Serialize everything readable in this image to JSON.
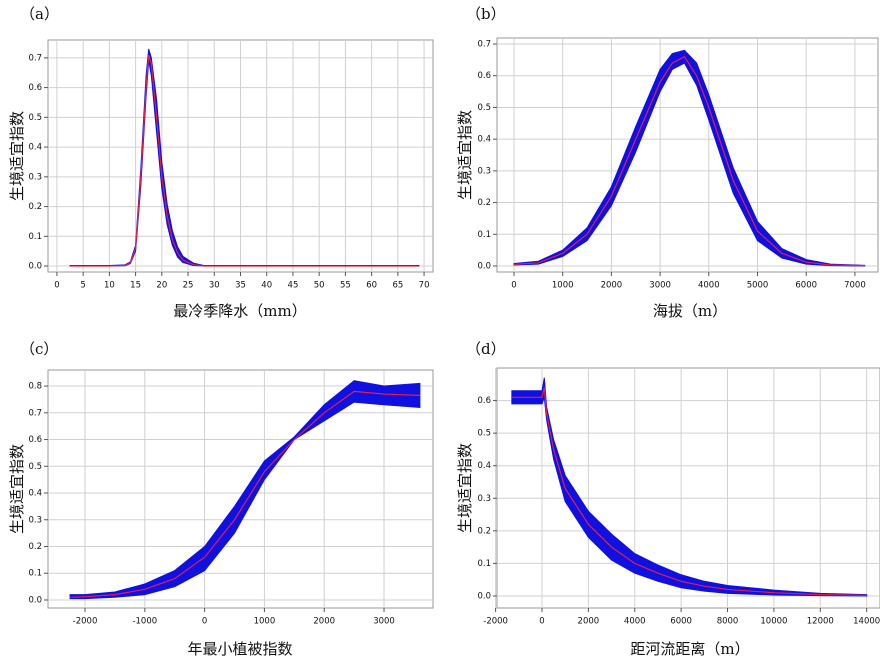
{
  "chart_data": [
    {
      "type": "band-line",
      "label": "（a）",
      "xlabel": "最冷季降水（mm）",
      "ylabel": "生境适宜指数",
      "x": [
        2.5,
        10,
        13,
        14,
        15,
        16,
        17,
        17.5,
        18,
        19,
        20,
        21,
        22,
        23,
        24,
        26,
        28,
        69
      ],
      "line": {
        "color": "#e0204a",
        "values": [
          0,
          0,
          0.002,
          0.01,
          0.06,
          0.3,
          0.6,
          0.71,
          0.68,
          0.5,
          0.3,
          0.17,
          0.09,
          0.045,
          0.02,
          0.005,
          0,
          0
        ]
      },
      "band": {
        "color": "#1010e0",
        "lower": [
          0,
          0,
          0.001,
          0.008,
          0.05,
          0.27,
          0.57,
          0.69,
          0.64,
          0.45,
          0.26,
          0.14,
          0.07,
          0.03,
          0.012,
          0.002,
          0,
          0
        ],
        "upper": [
          0.002,
          0.002,
          0.004,
          0.014,
          0.07,
          0.33,
          0.64,
          0.73,
          0.7,
          0.56,
          0.35,
          0.21,
          0.12,
          0.065,
          0.033,
          0.01,
          0.002,
          0.002
        ]
      },
      "xlim": [
        -1.7,
        71.7
      ],
      "ylim": [
        -0.02,
        0.76
      ],
      "xticks": [
        0,
        5,
        10,
        15,
        20,
        25,
        30,
        35,
        40,
        45,
        50,
        55,
        60,
        65,
        70
      ],
      "yticks": [
        {
          "value": 0,
          "label": "0.0"
        },
        0.1,
        0.2,
        0.3,
        0.4,
        0.5,
        0.6,
        0.7
      ],
      "grid": true
    },
    {
      "type": "band-line",
      "label": "（b）",
      "xlabel": "海拔（m）",
      "ylabel": "生境适宜指数",
      "x": [
        0,
        500,
        1000,
        1500,
        2000,
        2500,
        3000,
        3250,
        3500,
        3750,
        4000,
        4500,
        5000,
        5500,
        6000,
        6500,
        7200
      ],
      "line": {
        "color": "#e0204a",
        "values": [
          0.005,
          0.01,
          0.04,
          0.1,
          0.22,
          0.4,
          0.58,
          0.64,
          0.66,
          0.6,
          0.5,
          0.27,
          0.11,
          0.04,
          0.012,
          0.003,
          0.001
        ]
      },
      "band": {
        "color": "#1010e0",
        "lower": [
          0.003,
          0.006,
          0.03,
          0.08,
          0.19,
          0.36,
          0.55,
          0.62,
          0.64,
          0.57,
          0.46,
          0.23,
          0.08,
          0.025,
          0.006,
          0.001,
          0
        ],
        "upper": [
          0.008,
          0.015,
          0.05,
          0.12,
          0.25,
          0.44,
          0.62,
          0.67,
          0.68,
          0.64,
          0.54,
          0.31,
          0.14,
          0.055,
          0.02,
          0.006,
          0.002
        ]
      },
      "xlim": [
        -349,
        7474
      ],
      "ylim": [
        -0.019,
        0.719
      ],
      "xticks": [
        0,
        1000,
        2000,
        3000,
        4000,
        5000,
        6000,
        7000
      ],
      "yticks": [
        {
          "value": 0,
          "label": "0.0"
        },
        0.1,
        0.2,
        0.3,
        0.4,
        0.5,
        0.6,
        0.7
      ],
      "grid": true
    },
    {
      "type": "band-line",
      "label": "（c）",
      "xlabel": "年最小植被指数",
      "ylabel": "生境适宜指数",
      "x": [
        -2250,
        -2000,
        -1500,
        -1000,
        -500,
        0,
        500,
        1000,
        1500,
        2000,
        2500,
        3000,
        3600
      ],
      "line": {
        "color": "#e0204a",
        "values": [
          0.01,
          0.012,
          0.02,
          0.04,
          0.08,
          0.16,
          0.3,
          0.48,
          0.6,
          0.7,
          0.78,
          0.77,
          0.765
        ]
      },
      "band": {
        "color": "#1010e0",
        "lower": [
          0.005,
          0.005,
          0.01,
          0.02,
          0.05,
          0.11,
          0.25,
          0.45,
          0.6,
          0.67,
          0.74,
          0.73,
          0.72
        ],
        "upper": [
          0.02,
          0.02,
          0.03,
          0.06,
          0.11,
          0.2,
          0.35,
          0.52,
          0.61,
          0.73,
          0.82,
          0.8,
          0.81
        ]
      },
      "xlim": [
        -2619,
        3819
      ],
      "ylim": [
        -0.03,
        0.86
      ],
      "xticks": [
        -2000,
        -1000,
        0,
        1000,
        2000,
        3000
      ],
      "yticks": [
        {
          "value": 0,
          "label": "0.0"
        },
        0.1,
        0.2,
        0.3,
        0.4,
        0.5,
        0.6,
        0.7,
        0.8
      ],
      "grid": true
    },
    {
      "type": "band-line",
      "label": "（d）",
      "xlabel": "距河流距离（m）",
      "ylabel": "生境适宜指数",
      "x": [
        -1300,
        0,
        100,
        200,
        500,
        1000,
        2000,
        3000,
        4000,
        5000,
        6000,
        7000,
        8000,
        10000,
        12000,
        14000
      ],
      "line": {
        "color": "#e0204a",
        "values": [
          0.61,
          0.61,
          0.64,
          0.56,
          0.45,
          0.33,
          0.22,
          0.15,
          0.1,
          0.07,
          0.045,
          0.03,
          0.02,
          0.01,
          0.004,
          0.002
        ]
      },
      "band": {
        "color": "#1010e0",
        "lower": [
          0.59,
          0.59,
          0.61,
          0.54,
          0.42,
          0.29,
          0.18,
          0.11,
          0.07,
          0.045,
          0.025,
          0.015,
          0.008,
          0.003,
          0.001,
          0
        ],
        "upper": [
          0.63,
          0.63,
          0.67,
          0.58,
          0.48,
          0.37,
          0.26,
          0.19,
          0.13,
          0.095,
          0.065,
          0.045,
          0.032,
          0.018,
          0.008,
          0.004
        ]
      },
      "xlim": [
        -1940,
        14575
      ],
      "ylim": [
        -0.037,
        0.7
      ],
      "xticks": [
        -2000,
        0,
        2000,
        4000,
        6000,
        8000,
        10000,
        12000,
        14000
      ],
      "yticks": [
        {
          "value": 0,
          "label": "0.0"
        },
        0.1,
        0.2,
        0.3,
        0.4,
        0.5,
        0.6
      ],
      "grid": true
    }
  ]
}
